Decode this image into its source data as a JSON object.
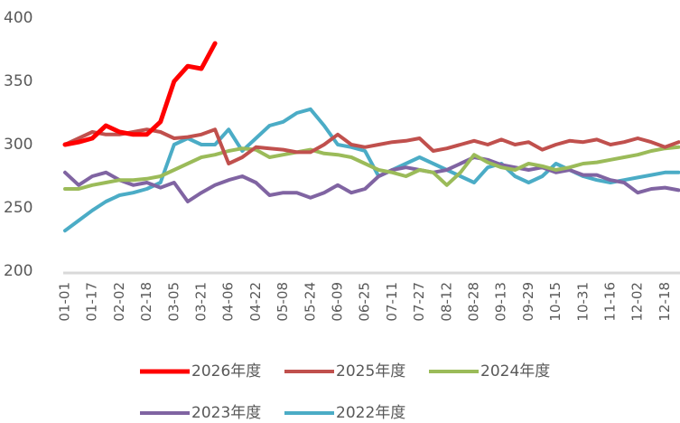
{
  "chart_data": {
    "type": "line",
    "categories": [
      "01-01",
      null,
      "01-17",
      null,
      "02-02",
      null,
      "02-18",
      null,
      "03-05",
      null,
      "03-21",
      null,
      "04-06",
      null,
      "04-22",
      null,
      "05-08",
      null,
      "05-24",
      null,
      "06-09",
      null,
      "06-25",
      null,
      "07-11",
      null,
      "07-27",
      null,
      "08-12",
      null,
      "08-28",
      null,
      "09-13",
      null,
      "09-29",
      null,
      "10-15",
      null,
      "10-31",
      null,
      "11-16",
      null,
      "12-02",
      null,
      "12-18",
      null
    ],
    "ylim": [
      200,
      400
    ],
    "yticks": [
      200,
      250,
      300,
      350,
      400
    ],
    "grid": false,
    "legend": "bottom",
    "series": [
      {
        "name": "2026年度",
        "color": "#ff0000",
        "values": [
          300,
          302,
          305,
          315,
          310,
          308,
          308,
          318,
          350,
          362,
          360,
          380,
          null,
          null,
          null,
          null,
          null,
          null,
          null,
          null,
          null,
          null,
          null,
          null,
          null,
          null,
          null,
          null,
          null,
          null,
          null,
          null,
          null,
          null,
          null,
          null,
          null,
          null,
          null,
          null,
          null,
          null,
          null,
          null,
          null,
          null
        ]
      },
      {
        "name": "2025年度",
        "color": "#c0504d",
        "values": [
          300,
          305,
          310,
          308,
          308,
          310,
          312,
          310,
          305,
          306,
          308,
          312,
          285,
          290,
          298,
          297,
          296,
          294,
          294,
          300,
          308,
          300,
          298,
          300,
          302,
          303,
          305,
          295,
          297,
          300,
          303,
          300,
          304,
          300,
          302,
          296,
          300,
          303,
          302,
          304,
          300,
          302,
          305,
          302,
          298,
          302
        ]
      },
      {
        "name": "2024年度",
        "color": "#9bbb59",
        "values": [
          265,
          265,
          268,
          270,
          272,
          272,
          273,
          275,
          280,
          285,
          290,
          292,
          295,
          297,
          296,
          290,
          292,
          294,
          296,
          293,
          292,
          290,
          285,
          280,
          278,
          275,
          280,
          278,
          268,
          278,
          292,
          286,
          282,
          280,
          285,
          283,
          280,
          282,
          285,
          286,
          288,
          290,
          292,
          295,
          297,
          298
        ]
      },
      {
        "name": "2023年度",
        "color": "#8064a2",
        "values": [
          278,
          268,
          275,
          278,
          272,
          268,
          270,
          266,
          270,
          255,
          262,
          268,
          272,
          275,
          270,
          260,
          262,
          262,
          258,
          262,
          268,
          262,
          265,
          275,
          280,
          282,
          280,
          278,
          280,
          285,
          290,
          288,
          284,
          282,
          280,
          282,
          278,
          280,
          276,
          276,
          272,
          270,
          262,
          265,
          266,
          264
        ]
      },
      {
        "name": "2022年度",
        "color": "#4bacc6",
        "values": [
          232,
          240,
          248,
          255,
          260,
          262,
          265,
          270,
          300,
          305,
          300,
          300,
          312,
          295,
          305,
          315,
          318,
          325,
          328,
          315,
          300,
          298,
          295,
          275,
          280,
          285,
          290,
          285,
          280,
          275,
          270,
          282,
          285,
          275,
          270,
          275,
          285,
          280,
          275,
          272,
          270,
          272,
          274,
          276,
          278,
          278
        ]
      }
    ]
  }
}
